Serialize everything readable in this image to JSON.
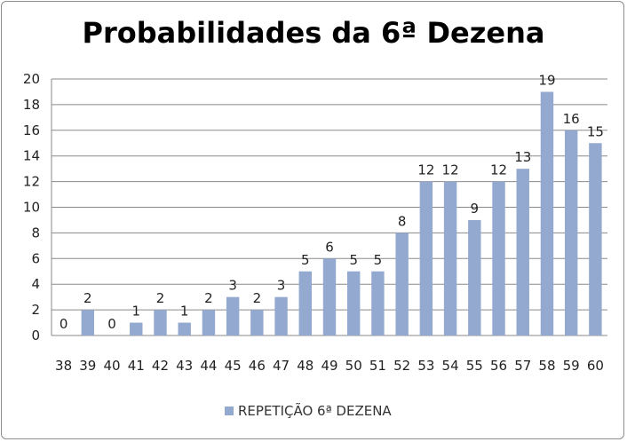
{
  "chart_data": {
    "type": "bar",
    "title": "Probabilidades da 6ª Dezena",
    "categories": [
      "38",
      "39",
      "40",
      "41",
      "42",
      "43",
      "44",
      "45",
      "46",
      "47",
      "48",
      "49",
      "50",
      "51",
      "52",
      "53",
      "54",
      "55",
      "56",
      "57",
      "58",
      "59",
      "60"
    ],
    "series": [
      {
        "name": "REPETIÇÃO 6ª DEZENA",
        "values": [
          0,
          2,
          0,
          1,
          2,
          1,
          2,
          3,
          2,
          3,
          5,
          6,
          5,
          5,
          8,
          12,
          12,
          9,
          12,
          13,
          19,
          16,
          15
        ],
        "color": "#94a9cf"
      }
    ],
    "ylim": [
      0,
      20
    ],
    "yticks": [
      0,
      2,
      4,
      6,
      8,
      10,
      12,
      14,
      16,
      18,
      20
    ],
    "grid": true,
    "legend_position": "bottom",
    "data_labels": true,
    "xlabel": "",
    "ylabel": ""
  }
}
